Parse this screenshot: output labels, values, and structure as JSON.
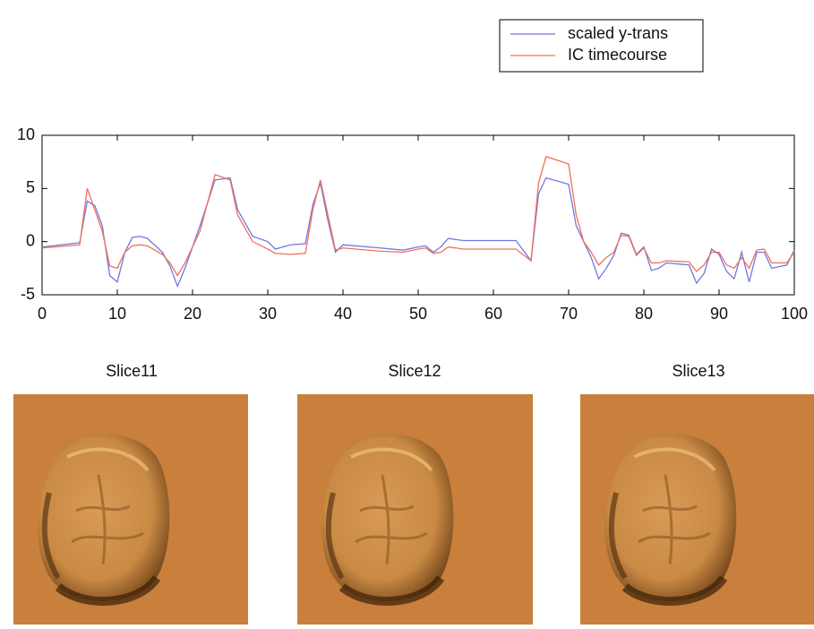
{
  "chart_data": {
    "type": "line",
    "x": [
      0,
      5,
      6,
      7,
      8,
      9,
      10,
      11,
      12,
      13,
      14,
      16,
      17,
      18,
      19,
      21,
      23,
      25,
      26,
      28,
      30,
      31,
      33,
      35,
      36,
      37,
      38,
      39,
      40,
      45,
      48,
      50,
      51,
      52,
      53,
      54,
      56,
      60,
      63,
      65,
      66,
      67,
      70,
      71,
      72,
      73,
      74,
      75,
      76,
      77,
      78,
      79,
      80,
      81,
      82,
      83,
      86,
      87,
      88,
      89,
      90,
      91,
      92,
      93,
      94,
      95,
      96,
      97,
      99,
      100
    ],
    "series": [
      {
        "name": "scaled y-trans",
        "color": "#6f78e0",
        "values": [
          -0.5,
          -0.1,
          3.8,
          3.4,
          1.5,
          -3.2,
          -3.8,
          -1.0,
          0.4,
          0.5,
          0.3,
          -1.0,
          -2.3,
          -4.2,
          -2.5,
          1.5,
          5.8,
          6.0,
          3.0,
          0.5,
          0.0,
          -0.7,
          -0.3,
          -0.2,
          3.5,
          5.5,
          2.0,
          -1.0,
          -0.3,
          -0.6,
          -0.8,
          -0.5,
          -0.4,
          -1.0,
          -0.5,
          0.3,
          0.1,
          0.1,
          0.1,
          -1.8,
          4.5,
          6.0,
          5.4,
          1.5,
          0.0,
          -1.5,
          -3.5,
          -2.5,
          -1.3,
          0.8,
          0.6,
          -1.2,
          -0.5,
          -2.7,
          -2.5,
          -2.0,
          -2.2,
          -3.9,
          -3.0,
          -0.7,
          -1.2,
          -2.8,
          -3.5,
          -1.0,
          -3.8,
          -1.0,
          -1.0,
          -2.5,
          -2.2,
          -0.8
        ]
      },
      {
        "name": "IC timecourse",
        "color": "#f0705a",
        "values": [
          -0.6,
          -0.3,
          5.0,
          3.0,
          1.0,
          -2.3,
          -2.5,
          -1.0,
          -0.4,
          -0.3,
          -0.4,
          -1.2,
          -2.0,
          -3.2,
          -2.0,
          1.0,
          6.3,
          5.8,
          2.5,
          0.0,
          -0.7,
          -1.1,
          -1.2,
          -1.1,
          3.0,
          5.8,
          2.5,
          -0.8,
          -0.6,
          -0.9,
          -1.0,
          -0.7,
          -0.6,
          -1.1,
          -1.0,
          -0.5,
          -0.7,
          -0.7,
          -0.7,
          -1.8,
          5.5,
          8.0,
          7.3,
          2.5,
          0.0,
          -1.0,
          -2.2,
          -1.5,
          -1.0,
          0.6,
          0.5,
          -1.3,
          -0.6,
          -2.0,
          -2.0,
          -1.8,
          -1.9,
          -2.8,
          -2.2,
          -1.0,
          -1.0,
          -2.2,
          -2.5,
          -1.5,
          -2.5,
          -0.8,
          -0.7,
          -2.0,
          -2.0,
          -1.0
        ]
      }
    ],
    "xlim": [
      0,
      100
    ],
    "xticks": [
      0,
      10,
      20,
      30,
      40,
      50,
      60,
      70,
      80,
      90,
      100
    ],
    "ylim": [
      -5,
      10
    ],
    "yticks": [
      -5,
      0,
      5,
      10
    ],
    "legend": "top-right"
  },
  "slices": [
    {
      "title": "Slice11"
    },
    {
      "title": "Slice12"
    },
    {
      "title": "Slice13"
    }
  ]
}
